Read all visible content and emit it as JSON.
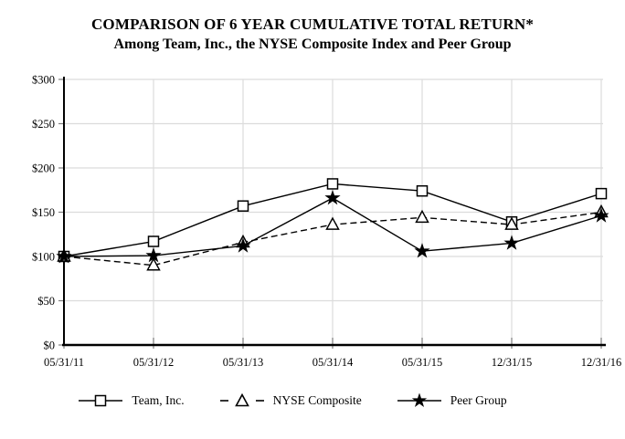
{
  "title": "COMPARISON OF 6 YEAR CUMULATIVE TOTAL RETURN*",
  "subtitle": "Among Team, Inc., the NYSE Composite Index and Peer Group",
  "colors": {
    "line": "#000000",
    "grid": "#dcdcdc",
    "tick": "#808080",
    "text": "#000000",
    "background": "#ffffff"
  },
  "chart_data": {
    "type": "line",
    "title": "COMPARISON OF 6 YEAR CUMULATIVE TOTAL RETURN*",
    "subtitle": "Among Team, Inc., the NYSE Composite Index and Peer Group",
    "categories": [
      "05/31/11",
      "05/31/12",
      "05/31/13",
      "05/31/14",
      "05/31/15",
      "12/31/15",
      "12/31/16"
    ],
    "series": [
      {
        "name": "Team, Inc.",
        "marker": "square",
        "line": "solid",
        "values": [
          100,
          117,
          157,
          182,
          174,
          139,
          171
        ]
      },
      {
        "name": "NYSE Composite",
        "marker": "triangle",
        "line": "dashed",
        "values": [
          100,
          90,
          116,
          136,
          144,
          136,
          150
        ]
      },
      {
        "name": "Peer Group",
        "marker": "star",
        "line": "solid",
        "values": [
          100,
          101,
          112,
          166,
          106,
          115,
          146
        ]
      }
    ],
    "xlabel": "",
    "ylabel": "",
    "ylim": [
      0,
      300
    ],
    "ytick_step": 50,
    "y_tick_labels": [
      "$0",
      "$50",
      "$100",
      "$150",
      "$200",
      "$250",
      "$300"
    ],
    "grid": true,
    "legend_position": "bottom"
  }
}
